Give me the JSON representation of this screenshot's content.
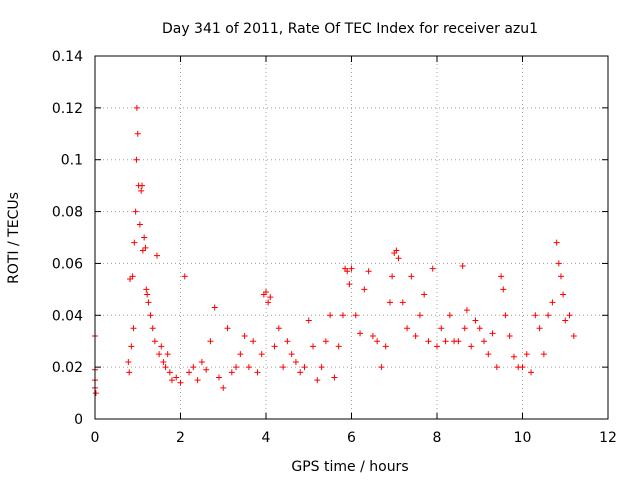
{
  "chart_data": {
    "type": "scatter",
    "title": "Day 341 of 2011, Rate Of TEC Index for receiver azu1",
    "xlabel": "GPS time / hours",
    "ylabel": "ROTI / TECUs",
    "xlim": [
      0,
      12
    ],
    "ylim": [
      0,
      0.14
    ],
    "xticks": [
      0,
      2,
      4,
      6,
      8,
      10,
      12
    ],
    "yticks": [
      0,
      0.02,
      0.04,
      0.06,
      0.08,
      0.1,
      0.12,
      0.14
    ],
    "xtick_labels": [
      "0",
      "2",
      "4",
      "6",
      "8",
      "10",
      "12"
    ],
    "ytick_labels": [
      "0",
      "0.02",
      "0.04",
      "0.06",
      "0.08",
      "0.1",
      "0.12",
      "0.14"
    ],
    "grid": true,
    "marker": "+",
    "color": "#ff0000",
    "series": [
      {
        "name": "ROTI",
        "x": [
          0.0,
          0.0,
          0.0,
          0.0,
          0.02,
          0.78,
          0.8,
          0.82,
          0.85,
          0.88,
          0.9,
          0.92,
          0.95,
          0.97,
          0.98,
          1.0,
          1.02,
          1.05,
          1.08,
          1.1,
          1.12,
          1.15,
          1.18,
          1.2,
          1.22,
          1.25,
          1.3,
          1.35,
          1.4,
          1.45,
          1.5,
          1.55,
          1.6,
          1.65,
          1.7,
          1.75,
          1.8,
          1.9,
          2.0,
          2.1,
          2.2,
          2.3,
          2.4,
          2.5,
          2.6,
          2.7,
          2.8,
          2.9,
          3.0,
          3.1,
          3.2,
          3.3,
          3.4,
          3.5,
          3.6,
          3.7,
          3.8,
          3.9,
          3.95,
          4.0,
          4.05,
          4.1,
          4.2,
          4.3,
          4.4,
          4.5,
          4.6,
          4.7,
          4.8,
          4.9,
          5.0,
          5.1,
          5.2,
          5.3,
          5.4,
          5.5,
          5.6,
          5.7,
          5.8,
          5.85,
          5.9,
          5.95,
          6.0,
          6.1,
          6.2,
          6.3,
          6.4,
          6.5,
          6.6,
          6.7,
          6.8,
          6.9,
          6.95,
          7.0,
          7.05,
          7.1,
          7.2,
          7.3,
          7.4,
          7.5,
          7.6,
          7.7,
          7.8,
          7.9,
          8.0,
          8.1,
          8.2,
          8.3,
          8.4,
          8.5,
          8.6,
          8.65,
          8.7,
          8.8,
          8.9,
          9.0,
          9.1,
          9.2,
          9.3,
          9.4,
          9.5,
          9.55,
          9.6,
          9.7,
          9.8,
          9.9,
          10.0,
          10.1,
          10.2,
          10.3,
          10.4,
          10.5,
          10.6,
          10.7,
          10.8,
          10.85,
          10.9,
          10.95,
          11.0,
          11.1,
          11.2
        ],
        "y": [
          0.032,
          0.019,
          0.015,
          0.012,
          0.01,
          0.022,
          0.018,
          0.054,
          0.028,
          0.055,
          0.035,
          0.068,
          0.08,
          0.1,
          0.12,
          0.11,
          0.09,
          0.075,
          0.088,
          0.09,
          0.065,
          0.07,
          0.066,
          0.05,
          0.048,
          0.045,
          0.04,
          0.035,
          0.03,
          0.063,
          0.025,
          0.028,
          0.022,
          0.02,
          0.025,
          0.018,
          0.015,
          0.016,
          0.014,
          0.055,
          0.018,
          0.02,
          0.015,
          0.022,
          0.019,
          0.03,
          0.043,
          0.016,
          0.012,
          0.035,
          0.018,
          0.02,
          0.025,
          0.032,
          0.02,
          0.03,
          0.018,
          0.025,
          0.048,
          0.049,
          0.045,
          0.047,
          0.028,
          0.035,
          0.02,
          0.03,
          0.025,
          0.022,
          0.018,
          0.02,
          0.038,
          0.028,
          0.015,
          0.02,
          0.03,
          0.04,
          0.016,
          0.028,
          0.04,
          0.058,
          0.057,
          0.052,
          0.058,
          0.04,
          0.033,
          0.05,
          0.057,
          0.032,
          0.03,
          0.02,
          0.028,
          0.045,
          0.055,
          0.064,
          0.065,
          0.062,
          0.045,
          0.035,
          0.055,
          0.032,
          0.04,
          0.048,
          0.03,
          0.058,
          0.028,
          0.035,
          0.03,
          0.04,
          0.03,
          0.03,
          0.059,
          0.035,
          0.042,
          0.028,
          0.038,
          0.035,
          0.03,
          0.025,
          0.033,
          0.02,
          0.055,
          0.05,
          0.04,
          0.032,
          0.024,
          0.02,
          0.02,
          0.025,
          0.018,
          0.04,
          0.035,
          0.025,
          0.04,
          0.045,
          0.068,
          0.06,
          0.055,
          0.048,
          0.038,
          0.04,
          0.032
        ]
      }
    ]
  }
}
